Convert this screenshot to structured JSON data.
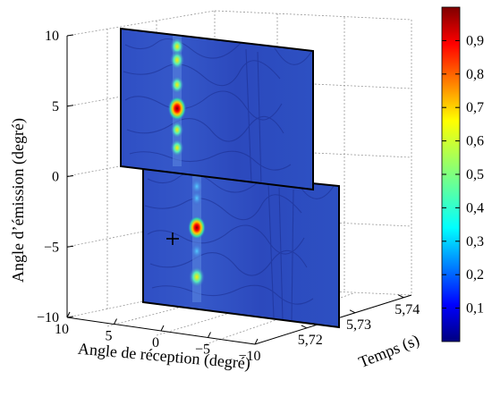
{
  "chart_data": {
    "type": "heatmap",
    "title": "",
    "axes": {
      "emission": {
        "label": "Angle d’émission (degré)",
        "range": [
          -10,
          10
        ],
        "ticks": [
          "−10",
          "−5",
          "0",
          "5",
          "10"
        ]
      },
      "reception": {
        "label": "Angle de réception (degré)",
        "range": [
          10,
          -10
        ],
        "ticks": [
          "10",
          "5",
          "0",
          "−5",
          "−10"
        ]
      },
      "time": {
        "label": "Temps (s)",
        "range": [
          5.72,
          5.74
        ],
        "ticks": [
          "5,72",
          "5,73",
          "5,74"
        ]
      }
    },
    "grid": true,
    "slices": [
      {
        "emission_range": [
          -0.8,
          10.8
        ],
        "peaks": [
          {
            "emission": 10.0,
            "intensity": 0.55
          },
          {
            "emission": 8.8,
            "intensity": 0.6
          },
          {
            "emission": 6.6,
            "intensity": 0.5
          },
          {
            "emission": 4.5,
            "intensity": 0.95
          },
          {
            "emission": 2.6,
            "intensity": 0.45
          },
          {
            "emission": 1.0,
            "intensity": 0.5
          }
        ]
      },
      {
        "emission_range": [
          -10.5,
          0.3
        ],
        "peaks": [
          {
            "emission": -0.5,
            "intensity": 0.35
          },
          {
            "emission": -1.5,
            "intensity": 0.3
          },
          {
            "emission": -4.0,
            "intensity": 0.9
          },
          {
            "emission": -6.0,
            "intensity": 0.35
          },
          {
            "emission": -8.2,
            "intensity": 0.75
          }
        ]
      }
    ],
    "marker": {
      "symbol": "+",
      "emission": -4.5,
      "reception": 4.5
    },
    "colorbar": {
      "min": 0,
      "max": 1,
      "ticks": [
        "0,1",
        "0,2",
        "0,3",
        "0,4",
        "0,5",
        "0,6",
        "0,7",
        "0,8",
        "0,9"
      ],
      "colormap": "jet"
    }
  }
}
